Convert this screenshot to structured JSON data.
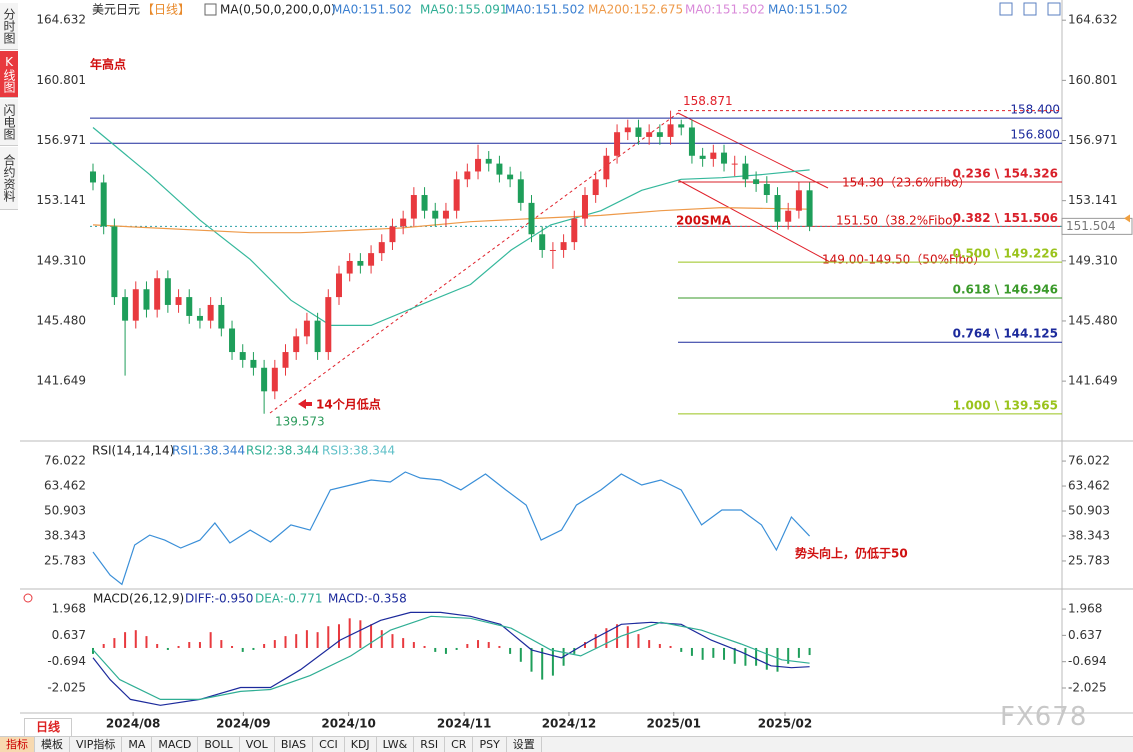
{
  "sidebar": [
    "分时图",
    "K线图",
    "闪电图",
    "合约资料"
  ],
  "period_tab": "日线",
  "toolbar": [
    "指标",
    "模板",
    "VIP指标",
    "MA",
    "MACD",
    "BOLL",
    "VOL",
    "BIAS",
    "CCI",
    "KDJ",
    "LW&",
    "RSI",
    "CR",
    "PSY",
    "设置"
  ],
  "watermark": "FX678",
  "chart_data": [
    {
      "type": "candlestick",
      "title": "美元日元",
      "period": "【日线】",
      "indicator": "MA(0,50,0,200,0,0)",
      "ma_labels": [
        {
          "text": "MA0:151.502",
          "color": "#3a7fd0"
        },
        {
          "text": "MA50:155.091",
          "color": "#2fae94"
        },
        {
          "text": "MA0:151.502",
          "color": "#3a7fd0"
        },
        {
          "text": "MA200:152.675",
          "color": "#ee9a4a"
        },
        {
          "text": "MA0:151.502",
          "color": "#d98ad9"
        },
        {
          "text": "MA0:151.502",
          "color": "#3a7fd0"
        }
      ],
      "xlim": [
        -0.28,
        90.6
      ],
      "ylim": [
        137.9,
        165.6
      ],
      "yticks": [
        164.632,
        160.801,
        156.971,
        153.141,
        {
          "value": 149.31,
          "label": "149.310"
        },
        {
          "value": 145.48,
          "label": "145.480"
        },
        141.649
      ],
      "up_color": "#e8393e",
      "down_color": "#1e9e5a",
      "candles": {
        "open": [
          155.0,
          154.3,
          151.5,
          147.0,
          145.5,
          147.5,
          146.2,
          148.2,
          146.5,
          147.0,
          145.8,
          145.5,
          146.5,
          145.0,
          143.5,
          143.0,
          142.5,
          141.0,
          142.5,
          143.5,
          144.5,
          145.5,
          143.5,
          147.0,
          148.5,
          149.3,
          149.0,
          149.8,
          150.5,
          151.5,
          152.0,
          153.5,
          152.5,
          152.0,
          152.5,
          154.5,
          155.0,
          155.8,
          155.5,
          154.8,
          154.5,
          153.0,
          151.0,
          150.0,
          150.0,
          150.5,
          152.0,
          153.5,
          154.5,
          156.0,
          157.5,
          157.8,
          157.2,
          157.5,
          157.2,
          158.0,
          157.8,
          156.0,
          155.8,
          156.2,
          155.5,
          155.5,
          154.5,
          154.2,
          153.5,
          151.8,
          152.5,
          153.8
        ],
        "high": [
          155.5,
          154.8,
          152.0,
          147.5,
          148.0,
          148.0,
          148.7,
          148.7,
          147.5,
          147.5,
          146.3,
          147.0,
          147.0,
          145.5,
          144.0,
          143.5,
          143.0,
          143.0,
          144.0,
          145.0,
          146.0,
          146.0,
          147.5,
          149.0,
          149.8,
          149.8,
          150.3,
          151.0,
          152.0,
          152.5,
          154.0,
          154.0,
          153.0,
          153.0,
          155.0,
          155.5,
          156.7,
          156.3,
          156.0,
          155.3,
          155.0,
          153.5,
          151.5,
          150.5,
          151.0,
          152.5,
          154.0,
          155.0,
          156.5,
          158.0,
          158.3,
          158.3,
          158.0,
          158.0,
          158.871,
          158.3,
          158.3,
          156.5,
          156.7,
          156.7,
          156.0,
          156.0,
          155.0,
          154.7,
          154.0,
          153.0,
          154.3,
          154.3
        ],
        "low": [
          153.8,
          151.0,
          146.5,
          142.0,
          145.0,
          145.7,
          145.7,
          146.0,
          146.0,
          145.3,
          145.0,
          145.0,
          144.5,
          143.0,
          142.5,
          142.0,
          139.573,
          140.5,
          142.0,
          143.0,
          144.0,
          143.0,
          143.0,
          146.5,
          148.0,
          148.5,
          148.5,
          149.3,
          150.0,
          151.0,
          151.5,
          152.0,
          151.5,
          151.5,
          152.0,
          154.0,
          154.5,
          155.0,
          154.3,
          154.0,
          152.5,
          150.5,
          149.5,
          148.8,
          149.5,
          150.0,
          151.5,
          153.0,
          154.0,
          155.5,
          157.0,
          156.7,
          156.7,
          156.7,
          156.7,
          157.3,
          155.5,
          155.3,
          155.3,
          155.0,
          154.7,
          154.0,
          153.7,
          153.0,
          151.3,
          151.3,
          152.0,
          151.2
        ],
        "close": [
          154.3,
          151.5,
          147.0,
          145.5,
          147.5,
          146.2,
          148.2,
          146.5,
          147.0,
          145.8,
          145.5,
          146.5,
          145.0,
          143.5,
          143.0,
          142.5,
          141.0,
          142.5,
          143.5,
          144.5,
          145.5,
          143.5,
          147.0,
          148.5,
          149.3,
          149.0,
          149.8,
          150.5,
          151.5,
          152.0,
          153.5,
          152.5,
          152.0,
          152.5,
          154.5,
          155.0,
          155.8,
          155.5,
          154.8,
          154.5,
          153.0,
          151.0,
          150.0,
          150.0,
          150.5,
          152.0,
          153.5,
          154.5,
          156.0,
          157.5,
          157.8,
          157.2,
          157.5,
          157.2,
          158.0,
          157.8,
          156.0,
          155.8,
          156.2,
          155.5,
          155.5,
          154.5,
          154.2,
          153.5,
          151.8,
          152.5,
          153.8,
          151.5
        ]
      },
      "series": [
        {
          "color": "#35b89c",
          "x": [
            0,
            5.3,
            10,
            14.7,
            18.5,
            22.2,
            26,
            30.6,
            35.3,
            39.1,
            42.8,
            47.5,
            51.3,
            55,
            58.8,
            62.5,
            67
          ],
          "values": [
            157.8,
            154.8,
            151.9,
            149.4,
            146.8,
            145.2,
            145.2,
            146.5,
            147.8,
            150.0,
            151.6,
            152.5,
            153.8,
            154.5,
            154.6,
            154.8,
            155.1
          ]
        },
        {
          "color": "#ee9a4a",
          "x": [
            0,
            14.7,
            19.4,
            28.8,
            35.3,
            41,
            47.5,
            53.1,
            58.8,
            67
          ],
          "values": [
            151.6,
            151.1,
            151.1,
            151.4,
            151.8,
            152.0,
            152.2,
            152.5,
            152.7,
            152.6
          ]
        }
      ],
      "h_lines": [
        {
          "value": 158.4,
          "label": "158.400",
          "color": "#1c2a9c"
        },
        {
          "value": 156.8,
          "label": "156.800",
          "color": "#1c2a9c"
        }
      ],
      "fib_levels": [
        {
          "value": 154.326,
          "label": "0.236 \\ 154.326",
          "color": "#d9202a"
        },
        {
          "value": 151.506,
          "label": "0.382 \\ 151.506",
          "color": "#d9202a"
        },
        {
          "value": 149.226,
          "label": "0.500 \\ 149.226",
          "color": "#9ac31c"
        },
        {
          "value": 146.946,
          "label": "0.618 \\ 146.946",
          "color": "#3a9a2a"
        },
        {
          "value": 144.125,
          "label": "0.764 \\ 144.125",
          "color": "#1c2a9c"
        },
        {
          "value": 139.565,
          "label": "1.000 \\ 139.565",
          "color": "#9ac31c"
        }
      ],
      "current_price": 151.504,
      "annotations": {
        "year_high": "年高点",
        "low_14m": "14个月低点",
        "sma200": "200SMA",
        "fib236": "154.30（23.6%Fibo）",
        "fib382": "151.50（38.2%Fibo）",
        "fib50": "149.00-149.50（50%Fibo）"
      }
    },
    {
      "type": "line",
      "title": "RSI(14,14,14)",
      "labels": [
        {
          "text": "RSI1:38.344",
          "color": "#3a7fd0"
        },
        {
          "text": "RSI2:38.344",
          "color": "#2fae94"
        },
        {
          "text": "RSI3:38.344",
          "color": "#5fc0c8"
        }
      ],
      "ylim": [
        13.7,
        84.1
      ],
      "yticks": [
        76.022,
        63.462,
        50.903,
        38.343,
        25.783
      ],
      "series": [
        {
          "color": "#3a8fd8",
          "x": [
            0,
            1.6,
            2.7,
            3.9,
            5.3,
            6.7,
            8.2,
            10,
            11.4,
            12.8,
            14.7,
            16.6,
            18.5,
            20.3,
            22.2,
            24.1,
            26,
            27.8,
            29.2,
            30.6,
            32.5,
            34.4,
            36.7,
            38.6,
            40.5,
            41.9,
            43.8,
            45.2,
            47.5,
            49.4,
            51.3,
            53.1,
            55,
            56.9,
            58.8,
            60.6,
            62.5,
            63.9,
            65.3,
            67
          ],
          "values": [
            30.3,
            18.7,
            14,
            33.8,
            38.8,
            36.3,
            32.3,
            36.3,
            44.9,
            34.8,
            41.3,
            35.3,
            43.9,
            41.3,
            61.5,
            64,
            66.5,
            65.5,
            70.5,
            67.5,
            66.5,
            61.5,
            69.5,
            61.5,
            53.9,
            36.3,
            41.3,
            53.9,
            61.5,
            69.5,
            64,
            66.5,
            61.5,
            43.9,
            51.4,
            51.4,
            43.9,
            31.3,
            47.9,
            38.3
          ]
        }
      ],
      "annotation": "势头向上，仍低于50"
    },
    {
      "type": "macd",
      "title": "MACD(26,12,9)",
      "labels": [
        {
          "text": "DIFF:-0.950",
          "color": "#1c2a9c"
        },
        {
          "text": "DEA:-0.771",
          "color": "#2fae94"
        },
        {
          "text": "MACD:-0.358",
          "color": "#1c2a9c"
        }
      ],
      "ylim": [
        -3.24,
        2.68
      ],
      "yticks": [
        1.968,
        0.637,
        -0.694,
        -2.025
      ],
      "xticks": [
        {
          "value": 3.75,
          "label": "2024/08"
        },
        {
          "value": 14.06,
          "label": "2024/09"
        },
        {
          "value": 23.9,
          "label": "2024/10"
        },
        {
          "value": 34.7,
          "label": "2024/11"
        },
        {
          "value": 44.5,
          "label": "2024/12"
        },
        {
          "value": 54.3,
          "label": "2025/01"
        },
        {
          "value": 64.7,
          "label": "2025/02"
        }
      ],
      "up_color": "#e8393e",
      "down_color": "#1e9e5a",
      "histogram": [
        -0.3,
        0.2,
        0.5,
        0.8,
        0.9,
        0.6,
        0.2,
        -0.1,
        0.1,
        0.3,
        0.3,
        0.8,
        0.4,
        0.1,
        -0.2,
        -0.1,
        0.2,
        0.4,
        0.6,
        0.7,
        0.9,
        0.8,
        1.1,
        1.2,
        1.5,
        1.4,
        1.2,
        0.9,
        0.7,
        0.5,
        0.3,
        0.1,
        -0.2,
        -0.3,
        -0.1,
        0.2,
        0.4,
        0.3,
        0.1,
        -0.3,
        -0.7,
        -1.2,
        -1.6,
        -1.4,
        -0.9,
        -0.3,
        0.3,
        0.7,
        1.0,
        1.2,
        1.1,
        0.7,
        0.4,
        0.2,
        0.1,
        -0.2,
        -0.4,
        -0.6,
        -0.5,
        -0.6,
        -0.8,
        -0.9,
        -0.9,
        -1.1,
        -1.2,
        -0.8,
        -0.5,
        -0.358
      ],
      "series": [
        {
          "color": "#1c2a9c",
          "x": [
            0,
            1.6,
            3.5,
            6.3,
            10,
            13.8,
            16.6,
            19.4,
            23.1,
            26.9,
            29.7,
            32.5,
            35.3,
            38.1,
            41,
            43.8,
            46.6,
            49.4,
            52.2,
            55,
            57.8,
            60.6,
            63.4,
            65.3,
            67
          ],
          "values": [
            -0.5,
            -1.6,
            -2.6,
            -2.9,
            -2.6,
            -2.0,
            -2.0,
            -1.1,
            0.4,
            1.4,
            1.8,
            1.8,
            1.6,
            1.2,
            -0.1,
            -0.5,
            0.4,
            1.2,
            1.3,
            1.2,
            0.4,
            -0.2,
            -0.9,
            -1.0,
            -0.95
          ]
        },
        {
          "color": "#2fae94",
          "x": [
            0,
            2.5,
            6.3,
            10,
            13.8,
            16.6,
            20.3,
            24.1,
            27.8,
            31.6,
            35.3,
            39.1,
            42.8,
            45.6,
            49.4,
            53.1,
            56.9,
            60.6,
            64.4,
            67
          ],
          "values": [
            -0.1,
            -1.6,
            -2.6,
            -2.6,
            -2.2,
            -2.1,
            -1.4,
            -0.4,
            0.9,
            1.6,
            1.5,
            1.0,
            -0.1,
            -0.4,
            0.6,
            1.3,
            0.9,
            0.2,
            -0.6,
            -0.771
          ]
        }
      ]
    }
  ]
}
